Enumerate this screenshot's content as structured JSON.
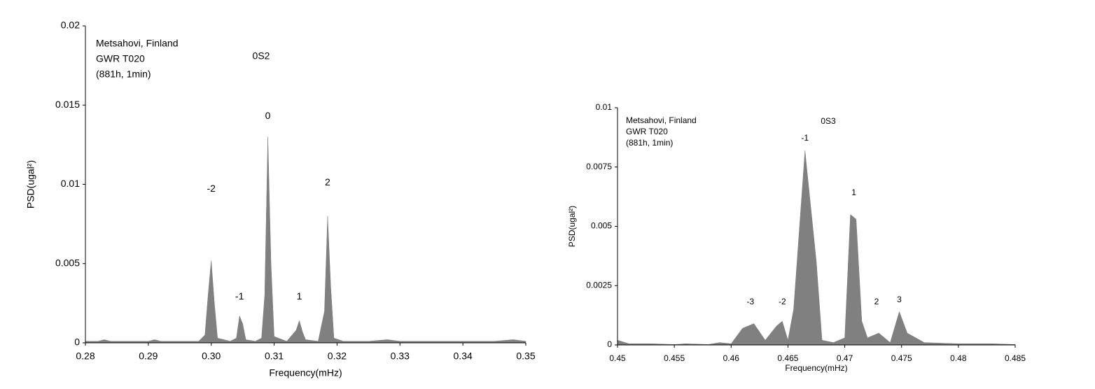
{
  "chart_data": [
    {
      "type": "area",
      "color": "#808080",
      "info_text": [
        "Metsahovi, Finland",
        "GWR T020",
        "(881h, 1min)"
      ],
      "mode_label": "0S2",
      "annotations": [
        "-2",
        "-1",
        "0",
        "1",
        "2"
      ],
      "xlabel": "Frequency(mHz)",
      "ylabel": "PSD(ugal²)",
      "xlim": [
        0.28,
        0.35
      ],
      "ylim": [
        0,
        0.02
      ],
      "xticks": [
        0.28,
        0.29,
        {
          "value": 0.3,
          "label": "0.30"
        },
        0.31,
        0.32,
        0.33,
        0.34,
        0.35
      ],
      "yticks": [
        0,
        0.005,
        0.01,
        0.015,
        0.02
      ],
      "x": [
        0.28,
        0.282,
        0.283,
        0.284,
        0.286,
        0.288,
        0.29,
        0.291,
        0.292,
        0.295,
        0.298,
        0.299,
        0.2995,
        0.3,
        0.3005,
        0.301,
        0.303,
        0.304,
        0.3045,
        0.305,
        0.3055,
        0.307,
        0.308,
        0.3085,
        0.309,
        0.3095,
        0.31,
        0.312,
        0.3135,
        0.314,
        0.3145,
        0.315,
        0.317,
        0.318,
        0.3185,
        0.319,
        0.3195,
        0.321,
        0.325,
        0.328,
        0.33,
        0.335,
        0.34,
        0.345,
        0.348,
        0.35
      ],
      "values": [
        0.0001,
        0.0001,
        0.0002,
        0.0001,
        0.0001,
        0.0001,
        0.0001,
        0.0002,
        0.0001,
        0.0001,
        0.0001,
        0.0005,
        0.003,
        0.0052,
        0.0025,
        0.0003,
        0.0001,
        0.0003,
        0.0017,
        0.0012,
        0.0002,
        0.0001,
        0.0003,
        0.003,
        0.013,
        0.005,
        0.0004,
        0.0001,
        0.0008,
        0.0014,
        0.0007,
        0.0002,
        0.0001,
        0.002,
        0.008,
        0.0035,
        0.0003,
        0.0001,
        0.0001,
        0.0002,
        0.0001,
        0.0001,
        0.0001,
        0.0001,
        0.0002,
        0.0001
      ]
    },
    {
      "type": "area",
      "color": "#808080",
      "info_text": [
        "Metsahovi, Finland",
        "GWR T020",
        "(881h, 1min)"
      ],
      "mode_label": "0S3",
      "annotations": [
        "-3",
        "-2",
        "-1",
        "1",
        "2",
        "3"
      ],
      "xlabel": "Frequency(mHz)",
      "ylabel": "PSD(ugal²)",
      "xlim": [
        0.45,
        0.485
      ],
      "ylim": [
        0,
        0.01
      ],
      "xticks": [
        0.45,
        0.455,
        0.46,
        0.465,
        0.47,
        0.475,
        0.48,
        0.485
      ],
      "yticks": [
        0,
        0.0025,
        0.005,
        0.0075,
        0.01
      ],
      "x": [
        0.45,
        0.451,
        0.453,
        0.455,
        0.456,
        0.458,
        0.459,
        0.46,
        0.461,
        0.462,
        0.463,
        0.464,
        0.4645,
        0.465,
        0.4655,
        0.4665,
        0.4675,
        0.468,
        0.469,
        0.47,
        0.4705,
        0.471,
        0.4715,
        0.472,
        0.473,
        0.474,
        0.4748,
        0.4755,
        0.477,
        0.48,
        0.483,
        0.485
      ],
      "values": [
        0.0002,
        5e-05,
        5e-05,
        2e-05,
        5e-05,
        2e-05,
        0.0001,
        5e-05,
        0.0007,
        0.0009,
        0.0002,
        0.0008,
        0.001,
        0.0002,
        0.0015,
        0.0082,
        0.0035,
        0.0002,
        0.0001,
        0.0003,
        0.0055,
        0.0053,
        0.001,
        0.0003,
        0.0005,
        0.0001,
        0.0014,
        0.0005,
        0.0001,
        5e-05,
        5e-05,
        2e-05
      ]
    }
  ]
}
